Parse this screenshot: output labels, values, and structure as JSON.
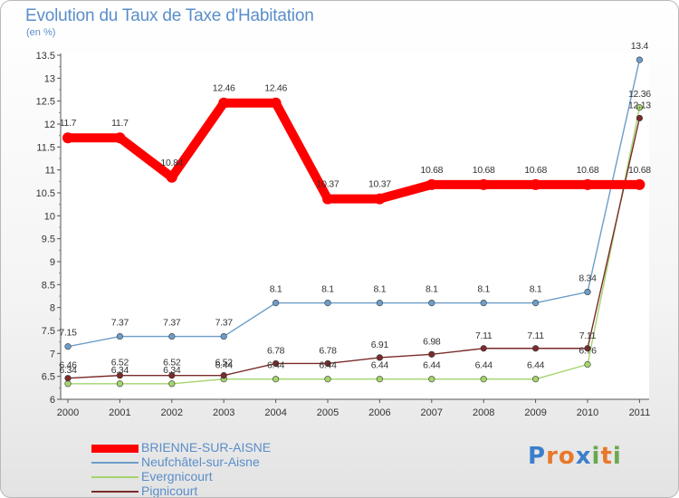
{
  "header": {
    "title": "Evolution du Taux de Taxe d'Habitation",
    "unit": "(en %)"
  },
  "brand": {
    "letters": [
      "P",
      "r",
      "o",
      "x",
      "i",
      "t",
      "i"
    ],
    "colors": [
      "#3a7fcb",
      "#e8782a",
      "#e8782a",
      "#3a7fcb",
      "#6aa84f",
      "#e8782a",
      "#6aa84f"
    ]
  },
  "chart_data": {
    "type": "line",
    "title": "Evolution du Taux de Taxe d'Habitation",
    "ylabel": "(en %)",
    "xlabel": "",
    "x": [
      "2000",
      "2001",
      "2002",
      "2003",
      "2004",
      "2005",
      "2006",
      "2007",
      "2008",
      "2009",
      "2010",
      "2011"
    ],
    "ylim": [
      6,
      13.5
    ],
    "yticks": [
      "6",
      "6.5",
      "7",
      "7.5",
      "8",
      "8.5",
      "9",
      "9.5",
      "10",
      "10.5",
      "11",
      "11.5",
      "12",
      "12.5",
      "13",
      "13.5"
    ],
    "grid": false,
    "legend_position": "bottom-left",
    "series": [
      {
        "name": "BRIENNE-SUR-AISNE",
        "color": "#ff0000",
        "values": [
          11.7,
          11.7,
          10.84,
          12.46,
          12.46,
          10.37,
          10.37,
          10.68,
          10.68,
          10.68,
          10.68,
          10.68
        ],
        "labels": [
          "11.7",
          "11.7",
          "10.84",
          "12.46",
          "12.46",
          "10.37",
          "10.37",
          "10.68",
          "10.68",
          "10.68",
          "10.68",
          "10.68"
        ]
      },
      {
        "name": "Neufchâtel-sur-Aisne",
        "color": "#6d9dc9",
        "values": [
          7.15,
          7.37,
          7.37,
          7.37,
          8.1,
          8.1,
          8.1,
          8.1,
          8.1,
          8.1,
          8.34,
          13.4
        ],
        "labels": [
          "7.15",
          "7.37",
          "7.37",
          "7.37",
          "8.1",
          "8.1",
          "8.1",
          "8.1",
          "8.1",
          "8.1",
          "8.34",
          "13.4"
        ]
      },
      {
        "name": "Evergnicourt",
        "color": "#a4d46c",
        "values": [
          6.34,
          6.34,
          6.34,
          6.44,
          6.44,
          6.44,
          6.44,
          6.44,
          6.44,
          6.44,
          6.76,
          12.36
        ],
        "labels": [
          "6.34",
          "6.34",
          "6.34",
          "6.44",
          "6.44",
          "6.44",
          "6.44",
          "6.44",
          "6.44",
          "6.44",
          "6.76",
          "12.36"
        ]
      },
      {
        "name": "Pignicourt",
        "color": "#7a2b2b",
        "values": [
          6.46,
          6.52,
          6.52,
          6.52,
          6.78,
          6.78,
          6.91,
          6.98,
          7.11,
          7.11,
          7.11,
          12.13
        ],
        "labels": [
          "6.46",
          "6.52",
          "6.52",
          "6.52",
          "6.78",
          "6.78",
          "6.91",
          "6.98",
          "7.11",
          "7.11",
          "7.11",
          "12.13"
        ]
      }
    ]
  }
}
